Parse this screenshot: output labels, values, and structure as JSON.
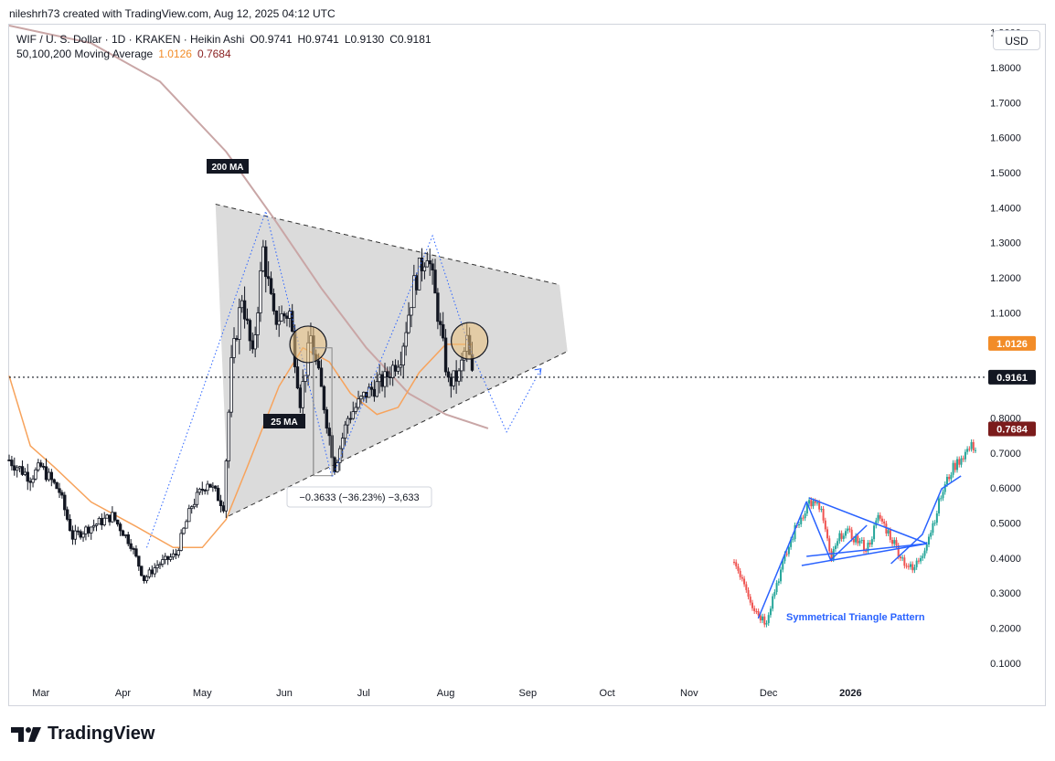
{
  "header": {
    "attribution": "nileshrh73 created with TradingView.com, Aug 12, 2025 04:12 UTC"
  },
  "legend": {
    "symbol_line": "WIF / U. S. Dollar · 1D · KRAKEN · Heikin Ashi",
    "ohlc": {
      "o": "O0.9741",
      "h": "H0.9741",
      "l": "L0.9130",
      "c": "C0.9181"
    },
    "ma_label": "50,100,200 Moving Average",
    "ma_value_1": "1.0126",
    "ma_value_2": "0.7684"
  },
  "currency_button": "USD",
  "footer": {
    "brand": "TradingView"
  },
  "colors": {
    "up_candle": "#ffffff",
    "down_candle": "#131722",
    "ma_fast": "#f7a35c",
    "ma_slow": "#c9a6a6",
    "triangle_fill": "#d9d9d9",
    "price_tag_orange": "#f28c28",
    "price_tag_dark": "#131722",
    "price_tag_red": "#7b1c1c",
    "highlight_circle": "#e9c07a",
    "inset_up": "#26a69a",
    "inset_down": "#ef5350",
    "inset_arrow": "#2962ff"
  },
  "chart_data": {
    "type": "candlestick",
    "y_axis": {
      "ticks": [
        "0.1000",
        "0.2000",
        "0.3000",
        "0.4000",
        "0.5000",
        "0.6000",
        "0.7000",
        "0.8000",
        "1.1000",
        "1.2000",
        "1.3000",
        "1.4000",
        "1.5000",
        "1.6000",
        "1.7000",
        "1.8000",
        "1.9000"
      ],
      "range": [
        0.05,
        1.92
      ]
    },
    "x_axis": {
      "ticks": [
        "Mar",
        "Apr",
        "May",
        "Jun",
        "Jul",
        "Aug",
        "Sep",
        "Oct",
        "Nov",
        "Dec",
        "2026"
      ],
      "range": [
        "2025-02-17",
        "2026-02-21"
      ]
    },
    "price_tags": [
      {
        "label": "1.0126",
        "value": 1.0126,
        "style": "orange"
      },
      {
        "label": "0.9161",
        "value": 0.9161,
        "style": "dark"
      },
      {
        "label": "0.7684",
        "value": 0.7684,
        "style": "red"
      }
    ],
    "current_price_line": 0.9161,
    "annotations": {
      "ma200_label": "200 MA",
      "ma25_label": "25 MA",
      "measure_label": "−0.3633 (−36.23%) −3,633",
      "measure_from": {
        "date": "2025-06-12",
        "value": 1.0
      },
      "measure_to": {
        "date": "2025-06-19",
        "value": 0.635
      },
      "inset_caption": "Symmetrical Triangle Pattern"
    },
    "triangle": {
      "upper": [
        {
          "date": "2025-05-06",
          "value": 1.41
        },
        {
          "date": "2025-09-13",
          "value": 1.18
        }
      ],
      "lower": [
        {
          "date": "2025-05-11",
          "value": 0.52
        },
        {
          "date": "2025-09-16",
          "value": 0.99
        }
      ],
      "apex": {
        "date": "2025-09-16",
        "value": 0.99
      }
    },
    "circles": [
      {
        "date": "2025-06-10",
        "value": 1.01
      },
      {
        "date": "2025-08-10",
        "value": 1.02
      }
    ],
    "projection_path": [
      {
        "date": "2025-08-10",
        "value": 1.0
      },
      {
        "date": "2025-08-24",
        "value": 0.76
      },
      {
        "date": "2025-09-06",
        "value": 0.94
      }
    ],
    "peak_path": [
      {
        "date": "2025-04-10",
        "value": 0.43
      },
      {
        "date": "2025-05-25",
        "value": 1.39
      },
      {
        "date": "2025-06-19",
        "value": 0.63
      },
      {
        "date": "2025-07-27",
        "value": 1.32
      },
      {
        "date": "2025-08-10",
        "value": 1.0
      }
    ],
    "ma25": [
      {
        "date": "2025-02-17",
        "value": 0.92
      },
      {
        "date": "2025-02-25",
        "value": 0.72
      },
      {
        "date": "2025-03-06",
        "value": 0.66
      },
      {
        "date": "2025-03-20",
        "value": 0.56
      },
      {
        "date": "2025-04-06",
        "value": 0.49
      },
      {
        "date": "2025-04-20",
        "value": 0.43
      },
      {
        "date": "2025-05-01",
        "value": 0.43
      },
      {
        "date": "2025-05-10",
        "value": 0.51
      },
      {
        "date": "2025-05-18",
        "value": 0.66
      },
      {
        "date": "2025-05-30",
        "value": 0.89
      },
      {
        "date": "2025-06-08",
        "value": 1.0
      },
      {
        "date": "2025-06-18",
        "value": 0.96
      },
      {
        "date": "2025-06-26",
        "value": 0.87
      },
      {
        "date": "2025-07-06",
        "value": 0.81
      },
      {
        "date": "2025-07-14",
        "value": 0.83
      },
      {
        "date": "2025-07-22",
        "value": 0.93
      },
      {
        "date": "2025-08-01",
        "value": 1.01
      },
      {
        "date": "2025-08-11",
        "value": 1.01
      }
    ],
    "ma200": [
      {
        "date": "2025-02-17",
        "value": 1.92
      },
      {
        "date": "2025-03-20",
        "value": 1.87
      },
      {
        "date": "2025-04-15",
        "value": 1.76
      },
      {
        "date": "2025-05-10",
        "value": 1.56
      },
      {
        "date": "2025-05-28",
        "value": 1.37
      },
      {
        "date": "2025-06-15",
        "value": 1.17
      },
      {
        "date": "2025-07-02",
        "value": 1.0
      },
      {
        "date": "2025-07-18",
        "value": 0.87
      },
      {
        "date": "2025-08-01",
        "value": 0.81
      },
      {
        "date": "2025-08-17",
        "value": 0.77
      }
    ],
    "price_path": [
      {
        "date": "2025-02-17",
        "value": 0.68
      },
      {
        "date": "2025-02-25",
        "value": 0.63
      },
      {
        "date": "2025-03-01",
        "value": 0.66
      },
      {
        "date": "2025-03-08",
        "value": 0.59
      },
      {
        "date": "2025-03-13",
        "value": 0.46
      },
      {
        "date": "2025-03-20",
        "value": 0.49
      },
      {
        "date": "2025-03-28",
        "value": 0.52
      },
      {
        "date": "2025-04-04",
        "value": 0.44
      },
      {
        "date": "2025-04-09",
        "value": 0.34
      },
      {
        "date": "2025-04-14",
        "value": 0.38
      },
      {
        "date": "2025-04-21",
        "value": 0.41
      },
      {
        "date": "2025-04-27",
        "value": 0.55
      },
      {
        "date": "2025-05-03",
        "value": 0.62
      },
      {
        "date": "2025-05-09",
        "value": 0.55
      },
      {
        "date": "2025-05-12",
        "value": 0.95
      },
      {
        "date": "2025-05-16",
        "value": 1.15
      },
      {
        "date": "2025-05-20",
        "value": 0.97
      },
      {
        "date": "2025-05-24",
        "value": 1.28
      },
      {
        "date": "2025-05-28",
        "value": 1.08
      },
      {
        "date": "2025-06-03",
        "value": 1.1
      },
      {
        "date": "2025-06-07",
        "value": 0.85
      },
      {
        "date": "2025-06-11",
        "value": 1.03
      },
      {
        "date": "2025-06-15",
        "value": 0.88
      },
      {
        "date": "2025-06-20",
        "value": 0.66
      },
      {
        "date": "2025-06-25",
        "value": 0.8
      },
      {
        "date": "2025-07-02",
        "value": 0.87
      },
      {
        "date": "2025-07-09",
        "value": 0.91
      },
      {
        "date": "2025-07-15",
        "value": 0.98
      },
      {
        "date": "2025-07-20",
        "value": 1.18
      },
      {
        "date": "2025-07-25",
        "value": 1.28
      },
      {
        "date": "2025-07-29",
        "value": 1.1
      },
      {
        "date": "2025-08-02",
        "value": 0.9
      },
      {
        "date": "2025-08-06",
        "value": 0.92
      },
      {
        "date": "2025-08-09",
        "value": 1.02
      },
      {
        "date": "2025-08-11",
        "value": 0.92
      }
    ],
    "inset_path": [
      [
        0.0,
        0.45
      ],
      [
        0.04,
        0.35
      ],
      [
        0.08,
        0.2
      ],
      [
        0.13,
        0.12
      ],
      [
        0.18,
        0.35
      ],
      [
        0.25,
        0.62
      ],
      [
        0.31,
        0.78
      ],
      [
        0.36,
        0.74
      ],
      [
        0.4,
        0.46
      ],
      [
        0.45,
        0.62
      ],
      [
        0.5,
        0.58
      ],
      [
        0.55,
        0.52
      ],
      [
        0.6,
        0.7
      ],
      [
        0.66,
        0.56
      ],
      [
        0.7,
        0.46
      ],
      [
        0.74,
        0.4
      ],
      [
        0.78,
        0.5
      ],
      [
        0.82,
        0.64
      ],
      [
        0.86,
        0.82
      ],
      [
        0.9,
        0.95
      ],
      [
        0.94,
        1.02
      ],
      [
        0.98,
        1.08
      ]
    ]
  }
}
